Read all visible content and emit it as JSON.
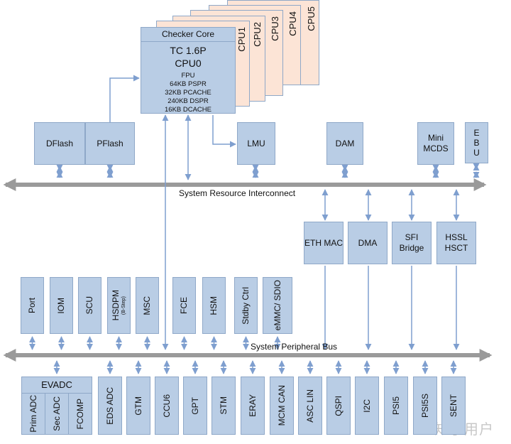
{
  "colors": {
    "block": "#b9cde5",
    "border": "#8fa8c8",
    "cpu": "#fce4d6",
    "arrow": "#7f9fcf",
    "bus": "#9a9a9a"
  },
  "cpu_stack": {
    "others": [
      "CPU1",
      "CPU2",
      "CPU3",
      "CPU4",
      "CPU5"
    ],
    "checker": "Checker Core",
    "title1": "TC 1.6P",
    "title2": "CPU0",
    "features": [
      "FPU",
      "64KB PSPR",
      "32KB PCACHE",
      "240KB DSPR",
      "16KB DCACHE"
    ]
  },
  "memory": {
    "dflash": "DFlash",
    "pflash": "PFlash",
    "lmu": "LMU",
    "dam": "DAM",
    "mcds": "Mini MCDS",
    "ebu": "E B U"
  },
  "bus_resource": "System Resource Interconnect",
  "bridges": [
    "ETH MAC",
    "DMA",
    "SFI Bridge",
    "HSSL HSCT"
  ],
  "periph_top": [
    {
      "label": "Port"
    },
    {
      "label": "IOM"
    },
    {
      "label": "SCU"
    },
    {
      "label": "HSDPM",
      "sub": "(B-Step)"
    },
    {
      "label": "MSC"
    },
    {
      "label": "FCE"
    },
    {
      "label": "HSM"
    },
    {
      "label": "Stdby Ctrl"
    },
    {
      "label": "eMMC/ SDIO"
    }
  ],
  "bus_peripheral": "System Peripheral Bus",
  "evadc": {
    "title": "EVADC",
    "parts": [
      "Prim ADC",
      "Sec ADC",
      "FCOMP"
    ]
  },
  "periph_bottom": [
    "EDS ADC",
    "GTM",
    "CCU6",
    "GPT",
    "STM",
    "ERAY",
    "MCM CAN",
    "ASC LIN",
    "QSPI",
    "I2C",
    "PSI5",
    "PSI5S",
    "SENT"
  ],
  "watermark": "知乎用户"
}
